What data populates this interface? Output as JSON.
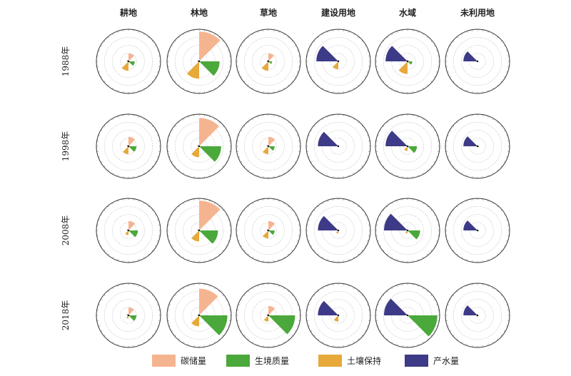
{
  "chart_data": {
    "type": "polar-rose-grid",
    "columns": [
      "耕地",
      "林地",
      "草地",
      "建设用地",
      "水域",
      "未利用地"
    ],
    "rows": [
      "1988年",
      "1998年",
      "2008年",
      "2018年"
    ],
    "series": [
      {
        "name": "碳储量",
        "color": "#f5b490"
      },
      {
        "name": "生境质量",
        "color": "#4ba83a"
      },
      {
        "name": "土壤保持",
        "color": "#e6a93a"
      },
      {
        "name": "产水量",
        "color": "#3d3a87"
      }
    ],
    "scale_max": 1.0,
    "values": [
      [
        [
          0.25,
          0.2,
          0.3,
          0.05
        ],
        [
          0.95,
          0.65,
          0.55,
          0.05
        ],
        [
          0.25,
          0.12,
          0.3,
          0.05
        ],
        [
          0.05,
          0.0,
          0.25,
          0.7
        ],
        [
          0.05,
          0.15,
          0.4,
          0.7
        ],
        [
          0.0,
          0.0,
          0.0,
          0.45
        ]
      ],
      [
        [
          0.3,
          0.25,
          0.25,
          0.05
        ],
        [
          0.9,
          0.7,
          0.35,
          0.05
        ],
        [
          0.3,
          0.2,
          0.25,
          0.05
        ],
        [
          0.0,
          0.0,
          0.0,
          0.65
        ],
        [
          0.0,
          0.3,
          0.15,
          0.7
        ],
        [
          0.0,
          0.05,
          0.0,
          0.45
        ]
      ],
      [
        [
          0.3,
          0.3,
          0.15,
          0.05
        ],
        [
          0.95,
          0.6,
          0.35,
          0.05
        ],
        [
          0.3,
          0.2,
          0.25,
          0.05
        ],
        [
          0.0,
          0.0,
          0.1,
          0.65
        ],
        [
          0.0,
          0.4,
          0.1,
          0.75
        ],
        [
          0.0,
          0.05,
          0.0,
          0.45
        ]
      ],
      [
        [
          0.25,
          0.25,
          0.1,
          0.05
        ],
        [
          0.85,
          0.9,
          0.35,
          0.05
        ],
        [
          0.3,
          0.85,
          0.2,
          0.05
        ],
        [
          0.0,
          0.0,
          0.2,
          0.65
        ],
        [
          0.0,
          0.95,
          0.0,
          0.75
        ],
        [
          0.0,
          0.0,
          0.05,
          0.45
        ]
      ]
    ]
  }
}
